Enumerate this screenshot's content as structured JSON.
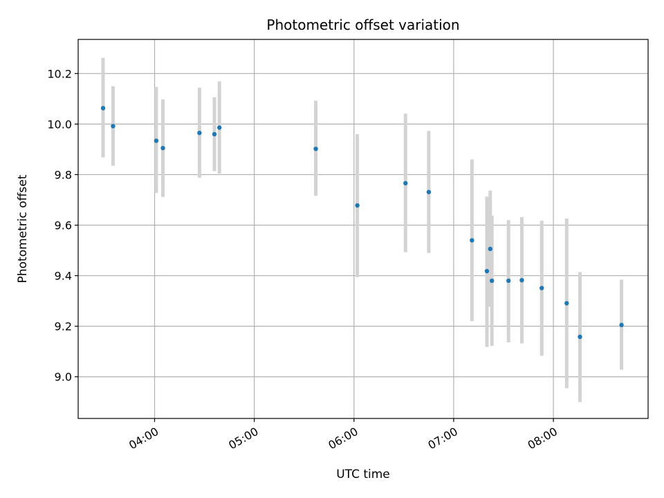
{
  "chart_data": {
    "type": "scatter",
    "title": "Photometric offset variation",
    "xlabel": "UTC time",
    "ylabel": "Photometric offset",
    "x_ticks": [
      "04:00",
      "05:00",
      "06:00",
      "07:00",
      "08:00"
    ],
    "y_ticks": [
      "9.0",
      "9.2",
      "9.4",
      "9.6",
      "9.8",
      "10.0",
      "10.2"
    ],
    "xlim": [
      "03:14",
      "08:57"
    ],
    "ylim": [
      8.835,
      10.335
    ],
    "grid": true,
    "point_color": "#1f77b4",
    "errorbar_color": "#d3d3d3",
    "points": [
      {
        "x": "03:29",
        "y": 10.063,
        "yerr_low": 9.868,
        "yerr_high": 10.262
      },
      {
        "x": "03:35",
        "y": 9.992,
        "yerr_low": 9.835,
        "yerr_high": 10.15
      },
      {
        "x": "04:01",
        "y": 9.934,
        "yerr_low": 9.727,
        "yerr_high": 10.147
      },
      {
        "x": "04:05",
        "y": 9.905,
        "yerr_low": 9.712,
        "yerr_high": 10.098
      },
      {
        "x": "04:27",
        "y": 9.965,
        "yerr_low": 9.788,
        "yerr_high": 10.144
      },
      {
        "x": "04:36",
        "y": 9.96,
        "yerr_low": 9.814,
        "yerr_high": 10.106
      },
      {
        "x": "04:39",
        "y": 9.986,
        "yerr_low": 9.804,
        "yerr_high": 10.169
      },
      {
        "x": "05:37",
        "y": 9.902,
        "yerr_low": 9.716,
        "yerr_high": 10.092
      },
      {
        "x": "06:02",
        "y": 9.678,
        "yerr_low": 9.394,
        "yerr_high": 9.96
      },
      {
        "x": "06:31",
        "y": 9.766,
        "yerr_low": 9.493,
        "yerr_high": 10.041
      },
      {
        "x": "06:45",
        "y": 9.731,
        "yerr_low": 9.49,
        "yerr_high": 9.973
      },
      {
        "x": "07:11",
        "y": 9.54,
        "yerr_low": 9.22,
        "yerr_high": 9.86
      },
      {
        "x": "07:20",
        "y": 9.418,
        "yerr_low": 9.118,
        "yerr_high": 9.713
      },
      {
        "x": "07:22",
        "y": 9.506,
        "yerr_low": 9.277,
        "yerr_high": 9.737
      },
      {
        "x": "07:23",
        "y": 9.38,
        "yerr_low": 9.122,
        "yerr_high": 9.638
      },
      {
        "x": "07:33",
        "y": 9.38,
        "yerr_low": 9.136,
        "yerr_high": 9.62
      },
      {
        "x": "07:41",
        "y": 9.382,
        "yerr_low": 9.132,
        "yerr_high": 9.632
      },
      {
        "x": "07:53",
        "y": 9.351,
        "yerr_low": 9.083,
        "yerr_high": 9.618
      },
      {
        "x": "08:08",
        "y": 9.291,
        "yerr_low": 8.955,
        "yerr_high": 9.626
      },
      {
        "x": "08:16",
        "y": 9.158,
        "yerr_low": 8.9,
        "yerr_high": 9.414
      },
      {
        "x": "08:41",
        "y": 9.205,
        "yerr_low": 9.028,
        "yerr_high": 9.384
      }
    ]
  }
}
